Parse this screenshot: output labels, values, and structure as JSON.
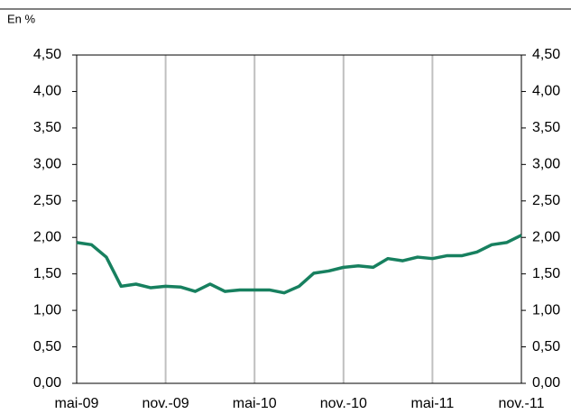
{
  "chart_data": {
    "type": "line",
    "unit_label": "En %",
    "categories": [
      "mai-09",
      null,
      null,
      null,
      null,
      null,
      "nov.-09",
      null,
      null,
      null,
      null,
      null,
      "mai-10",
      null,
      null,
      null,
      null,
      null,
      "nov.-10",
      null,
      null,
      null,
      null,
      null,
      "mai-11",
      null,
      null,
      null,
      null,
      null,
      "nov.-11"
    ],
    "series": [
      {
        "name": null,
        "color": "#17805f",
        "values": [
          1.93,
          1.9,
          1.73,
          1.33,
          1.36,
          1.31,
          1.33,
          1.32,
          1.26,
          1.36,
          1.26,
          1.28,
          1.28,
          1.28,
          1.24,
          1.33,
          1.51,
          1.54,
          1.59,
          1.61,
          1.59,
          1.71,
          1.68,
          1.73,
          1.71,
          1.75,
          1.75,
          1.8,
          1.9,
          1.93,
          2.03
        ]
      }
    ],
    "ylim": [
      0,
      4.5
    ],
    "yticks": [
      {
        "value": 0,
        "label": "0,00"
      },
      {
        "value": 0.5,
        "label": "0,50"
      },
      {
        "value": 1,
        "label": "1,00"
      },
      {
        "value": 1.5,
        "label": "1,50"
      },
      {
        "value": 2,
        "label": "2,00"
      },
      {
        "value": 2.5,
        "label": "2,50"
      },
      {
        "value": 3,
        "label": "3,00"
      },
      {
        "value": 3.5,
        "label": "3,50"
      },
      {
        "value": 4,
        "label": "4,00"
      },
      {
        "value": 4.5,
        "label": "4,50"
      }
    ],
    "y2lim": [
      0,
      4.5
    ],
    "y2ticks": [
      {
        "value": 0,
        "label": "0,00"
      },
      {
        "value": 0.5,
        "label": "0,50"
      },
      {
        "value": 1,
        "label": "1,00"
      },
      {
        "value": 1.5,
        "label": "1,50"
      },
      {
        "value": 2,
        "label": "2,00"
      },
      {
        "value": 2.5,
        "label": "2,50"
      },
      {
        "value": 3,
        "label": "3,00"
      },
      {
        "value": 3.5,
        "label": "3,50"
      },
      {
        "value": 4,
        "label": "4,00"
      },
      {
        "value": 4.5,
        "label": "4,50"
      }
    ],
    "grid": "x"
  }
}
